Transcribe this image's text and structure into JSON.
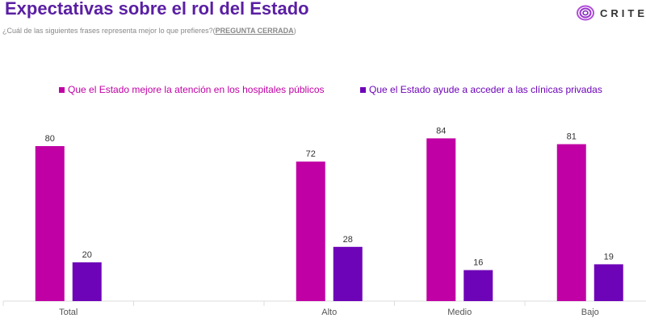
{
  "header": {
    "title": "Expectativas sobre el rol del Estado",
    "question": "¿Cuál de las siguientes frases representa mejor lo que prefieres?(",
    "question_tag": "PREGUNTA CERRADA",
    "question_end": ")",
    "logo_text": "CRITER"
  },
  "colors": {
    "title": "#5a1fa3",
    "series1": "#c000a4",
    "series2": "#6e04b8"
  },
  "chart_data": {
    "type": "bar",
    "categories": [
      "Total",
      "",
      "Alto",
      "Medio",
      "Bajo"
    ],
    "series": [
      {
        "name": "Que el Estado mejore la atención en los hospitales públicos",
        "values": [
          80,
          null,
          72,
          84,
          81
        ]
      },
      {
        "name": "Que el Estado ayude a acceder a las clínicas privadas",
        "values": [
          20,
          null,
          28,
          16,
          19
        ]
      }
    ],
    "ylim": [
      0,
      100
    ],
    "grid": false,
    "legend": "top"
  }
}
